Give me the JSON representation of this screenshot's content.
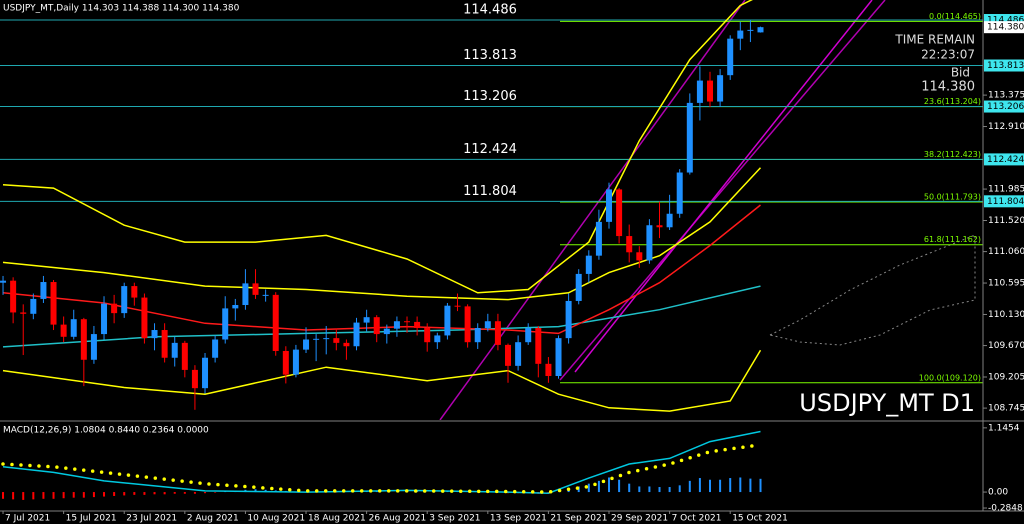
{
  "chart_data": {
    "type": "candlestick",
    "header": "USDJPY_MT,Daily  114.303 114.388 114.300 114.380",
    "symbol_label": "USDJPY_MT D1",
    "time_remain_label": "TIME REMAIN",
    "time_remain": "22:23:07",
    "bid_label": "Bid",
    "bid": {
      "value": 114.38,
      "label": "114.380"
    },
    "up_color": "#1e90ff",
    "down_color": "#ff0000",
    "xlim": [
      -0.3,
      97.03
    ],
    "xticks": [
      {
        "value": 0,
        "label": "7 Jul 2021"
      },
      {
        "value": 6,
        "label": "15 Jul 2021"
      },
      {
        "value": 12,
        "label": "23 Jul 2021"
      },
      {
        "value": 18,
        "label": "2 Aug 2021"
      },
      {
        "value": 24,
        "label": "10 Aug 2021"
      },
      {
        "value": 30,
        "label": "18 Aug 2021"
      },
      {
        "value": 36,
        "label": "26 Aug 2021"
      },
      {
        "value": 42,
        "label": "3 Sep 2021"
      },
      {
        "value": 48,
        "label": "13 Sep 2021"
      },
      {
        "value": 54,
        "label": "21 Sep 2021"
      },
      {
        "value": 60,
        "label": "29 Sep 2021"
      },
      {
        "value": 66,
        "label": "7 Oct 2021"
      },
      {
        "value": 72,
        "label": "15 Oct 2021"
      }
    ],
    "ylim": [
      108.569,
      114.782
    ],
    "yticks": [
      113.375,
      {
        "value": 112.91,
        "label": "112.910"
      },
      111.985,
      {
        "value": 111.52,
        "label": "111.520"
      },
      {
        "value": 111.06,
        "label": "111.060"
      },
      110.595,
      {
        "value": 110.13,
        "label": "110.130"
      },
      {
        "value": 109.67,
        "label": "109.670"
      },
      109.205,
      108.745
    ],
    "levels": [
      114.486,
      113.813,
      113.206,
      112.424,
      111.804
    ],
    "level_color": "#1fa8b0",
    "level_box_color": "#3ee6ee",
    "fib_levels": [
      {
        "value": 114.465,
        "label": "0.0(114.465)"
      },
      {
        "value": 113.204,
        "label": "23.6(113.204)"
      },
      {
        "value": 112.423,
        "label": "38.2(112.423)"
      },
      {
        "value": 111.793,
        "label": "50.0(111.793)"
      },
      {
        "value": 111.162,
        "label": "61.8(111.162)"
      },
      {
        "value": 109.12,
        "label": "100.0(109.120)"
      }
    ],
    "fib_color": "#7cfc00",
    "candles": [
      [
        110.6,
        110.7,
        110.42,
        110.63
      ],
      [
        110.63,
        110.68,
        110.0,
        110.16
      ],
      [
        110.16,
        110.28,
        109.53,
        110.14
      ],
      [
        110.14,
        110.44,
        110.06,
        110.36
      ],
      [
        110.36,
        110.7,
        110.3,
        110.61
      ],
      [
        110.61,
        110.64,
        109.9,
        109.98
      ],
      [
        109.98,
        110.1,
        109.72,
        109.8
      ],
      [
        109.8,
        110.2,
        109.76,
        110.06
      ],
      [
        110.06,
        110.08,
        109.07,
        109.46
      ],
      [
        109.46,
        109.96,
        109.4,
        109.84
      ],
      [
        109.84,
        110.4,
        109.76,
        110.29
      ],
      [
        110.29,
        110.42,
        110.0,
        110.15
      ],
      [
        110.15,
        110.6,
        110.08,
        110.55
      ],
      [
        110.55,
        110.6,
        110.26,
        110.38
      ],
      [
        110.38,
        110.44,
        109.7,
        109.78
      ],
      [
        109.78,
        110.0,
        109.6,
        109.9
      ],
      [
        109.9,
        110.0,
        109.42,
        109.49
      ],
      [
        109.49,
        109.8,
        109.36,
        109.71
      ],
      [
        109.71,
        109.74,
        109.2,
        109.31
      ],
      [
        109.31,
        109.38,
        108.72,
        109.04
      ],
      [
        109.04,
        109.56,
        108.96,
        109.49
      ],
      [
        109.49,
        109.82,
        109.42,
        109.76
      ],
      [
        109.76,
        110.4,
        109.7,
        110.22
      ],
      [
        110.22,
        110.36,
        110.04,
        110.27
      ],
      [
        110.27,
        110.8,
        110.2,
        110.59
      ],
      [
        110.59,
        110.8,
        110.36,
        110.42
      ],
      [
        110.42,
        110.5,
        110.32,
        110.42
      ],
      [
        110.42,
        110.46,
        109.52,
        109.59
      ],
      [
        109.59,
        109.66,
        109.11,
        109.24
      ],
      [
        109.24,
        109.68,
        109.2,
        109.61
      ],
      [
        109.61,
        109.94,
        109.56,
        109.76
      ],
      [
        109.76,
        109.84,
        109.44,
        109.77
      ],
      [
        109.77,
        109.96,
        109.54,
        109.78
      ],
      [
        109.78,
        109.92,
        109.6,
        109.71
      ],
      [
        109.71,
        109.76,
        109.46,
        109.66
      ],
      [
        109.66,
        110.08,
        109.6,
        110.01
      ],
      [
        110.01,
        110.2,
        109.88,
        110.09
      ],
      [
        110.09,
        110.12,
        109.72,
        109.84
      ],
      [
        109.84,
        109.98,
        109.7,
        109.92
      ],
      [
        109.92,
        110.1,
        109.8,
        110.03
      ],
      [
        110.03,
        110.1,
        109.86,
        110.02
      ],
      [
        110.02,
        110.1,
        109.82,
        109.93
      ],
      [
        109.93,
        110.0,
        109.58,
        109.72
      ],
      [
        109.72,
        109.86,
        109.62,
        109.82
      ],
      [
        109.82,
        110.3,
        109.76,
        110.26
      ],
      [
        110.26,
        110.44,
        110.18,
        110.25
      ],
      [
        110.25,
        110.28,
        109.64,
        109.72
      ],
      [
        109.72,
        110.0,
        109.62,
        109.93
      ],
      [
        109.93,
        110.14,
        109.88,
        110.03
      ],
      [
        110.03,
        110.14,
        109.6,
        109.68
      ],
      [
        109.68,
        109.7,
        109.12,
        109.37
      ],
      [
        109.37,
        109.82,
        109.3,
        109.72
      ],
      [
        109.72,
        110.0,
        109.68,
        109.93
      ],
      [
        109.93,
        109.96,
        109.2,
        109.4
      ],
      [
        109.4,
        109.5,
        109.12,
        109.22
      ],
      [
        109.22,
        109.82,
        109.18,
        109.78
      ],
      [
        109.78,
        110.44,
        109.7,
        110.33
      ],
      [
        110.33,
        110.8,
        110.28,
        110.73
      ],
      [
        110.73,
        111.08,
        110.6,
        111.0
      ],
      [
        111.0,
        111.68,
        110.94,
        111.5
      ],
      [
        111.5,
        112.08,
        111.4,
        111.98
      ],
      [
        111.98,
        112.0,
        111.18,
        111.29
      ],
      [
        111.29,
        111.46,
        110.9,
        111.05
      ],
      [
        111.05,
        111.14,
        110.82,
        110.93
      ],
      [
        110.93,
        111.54,
        110.88,
        111.45
      ],
      [
        111.45,
        111.8,
        111.26,
        111.42
      ],
      [
        111.42,
        111.9,
        111.38,
        111.62
      ],
      [
        111.62,
        112.28,
        111.56,
        112.23
      ],
      [
        112.23,
        113.4,
        112.2,
        113.26
      ],
      [
        113.26,
        113.8,
        113.0,
        113.59
      ],
      [
        113.59,
        113.72,
        113.2,
        113.28
      ],
      [
        113.28,
        113.76,
        113.2,
        113.67
      ],
      [
        113.67,
        114.26,
        113.6,
        114.21
      ],
      [
        114.21,
        114.46,
        114.04,
        114.33
      ],
      [
        114.33,
        114.48,
        114.16,
        114.34
      ],
      [
        114.303,
        114.388,
        114.3,
        114.38
      ]
    ],
    "overlays": [
      {
        "color": "#20c0c8",
        "x": [
          0,
          15,
          30,
          45,
          55,
          65,
          75
        ],
        "values": [
          109.65,
          109.8,
          109.85,
          109.9,
          109.95,
          110.2,
          110.55
        ]
      },
      {
        "color": "#ffff00",
        "x": [
          0,
          5,
          12,
          18,
          25,
          32,
          40,
          47,
          52,
          58,
          63,
          68,
          73,
          75
        ],
        "values": [
          112.05,
          112.0,
          111.45,
          111.2,
          111.2,
          111.3,
          110.95,
          110.45,
          110.5,
          111.2,
          112.7,
          113.9,
          114.7,
          114.85
        ]
      },
      {
        "color": "#ffff00",
        "x": [
          0,
          12,
          20,
          32,
          42,
          50,
          55,
          60,
          66,
          72,
          75
        ],
        "values": [
          109.3,
          109.05,
          108.95,
          109.35,
          109.15,
          109.3,
          108.95,
          108.75,
          108.7,
          108.85,
          109.6
        ]
      },
      {
        "color": "#ffff00",
        "x": [
          0,
          10,
          20,
          30,
          40,
          50,
          56,
          60,
          65,
          70,
          75
        ],
        "values": [
          110.9,
          110.75,
          110.55,
          110.5,
          110.4,
          110.35,
          110.45,
          110.75,
          111.0,
          111.5,
          112.3
        ]
      },
      {
        "color": "#ff1a1a",
        "x": [
          0,
          10,
          20,
          30,
          40,
          50,
          55,
          60,
          65,
          70,
          75
        ],
        "values": [
          110.45,
          110.3,
          110.0,
          109.9,
          109.95,
          109.9,
          109.85,
          110.2,
          110.6,
          111.15,
          111.75
        ]
      }
    ],
    "macd": {
      "label": "MACD(12,26,9) 1.0804 0.8440 0.2364 0.0000",
      "ylim": [
        -0.32,
        1.25
      ],
      "yticks": [
        1.1454,
        {
          "value": 0,
          "label": "0.00"
        },
        -0.2848
      ],
      "pos_color": "#1e90ff",
      "neg_color": "#ff0000",
      "histogram": [
        -0.12,
        -0.13,
        -0.14,
        -0.13,
        -0.12,
        -0.12,
        -0.11,
        -0.1,
        -0.1,
        -0.09,
        -0.08,
        -0.07,
        -0.06,
        -0.05,
        -0.05,
        -0.04,
        -0.04,
        -0.03,
        -0.03,
        -0.03,
        -0.02,
        -0.01,
        0.01,
        0.02,
        0.04,
        0.05,
        0.04,
        0.03,
        0.02,
        0.01,
        0.0,
        -0.01,
        -0.01,
        -0.01,
        0.0,
        0.0,
        0.01,
        0.01,
        0.0,
        0.0,
        0.01,
        0.01,
        0.0,
        0.0,
        0.01,
        0.01,
        0.0,
        0.0,
        0.0,
        -0.01,
        -0.02,
        -0.02,
        -0.02,
        -0.03,
        -0.03,
        0.0,
        0.05,
        0.1,
        0.15,
        0.2,
        0.26,
        0.22,
        0.15,
        0.1,
        0.1,
        0.09,
        0.09,
        0.12,
        0.2,
        0.25,
        0.22,
        0.22,
        0.25,
        0.26,
        0.24,
        0.2364
      ],
      "main": {
        "color": "#00c8e0",
        "x": [
          0,
          5,
          10,
          20,
          30,
          40,
          50,
          54,
          58,
          62,
          66,
          70,
          75
        ],
        "values": [
          0.45,
          0.35,
          0.2,
          0.02,
          0.0,
          0.03,
          0.0,
          -0.02,
          0.25,
          0.5,
          0.6,
          0.9,
          1.0804
        ]
      },
      "signal": {
        "color": "#ffff00",
        "x": [
          0,
          5,
          10,
          20,
          30,
          40,
          50,
          54,
          58,
          62,
          66,
          70,
          75
        ],
        "values": [
          0.5,
          0.45,
          0.35,
          0.15,
          0.02,
          0.02,
          0.01,
          0.0,
          0.1,
          0.35,
          0.5,
          0.72,
          0.844
        ]
      }
    }
  }
}
